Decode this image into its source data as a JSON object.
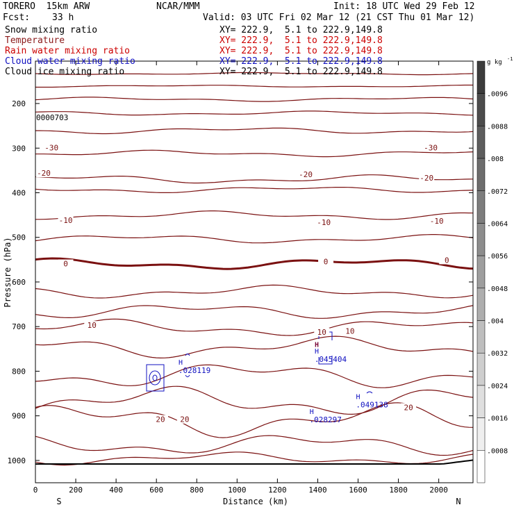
{
  "header": {
    "model": "TORERO  15km ARW",
    "center": "NCAR/MMM",
    "init": "Init: 18 UTC Wed 29 Feb 12",
    "fcst_label": "Fcst:",
    "fcst_value": "33 h",
    "valid": "Valid: 03 UTC Fri 02 Mar 12 (21 CST Thu 01 Mar 12)"
  },
  "fields": [
    {
      "name": "Snow mixing ratio",
      "xy": "XY= 222.9,  5.1 to 222.9,149.8",
      "color": "#000000"
    },
    {
      "name": "Temperature",
      "xy": "XY= 222.9,  5.1 to 222.9,149.8",
      "color": "#8b1a1a"
    },
    {
      "name": "Rain water mixing ratio",
      "xy": "XY= 222.9,  5.1 to 222.9,149.8",
      "color": "#cc0000"
    },
    {
      "name": "Cloud water mixing ratio",
      "xy": "XY= 222.9,  5.1 to 222.9,149.8",
      "color": "#1010c0"
    },
    {
      "name": "Cloud ice mixing ratio",
      "xy": "XY= 222.9,  5.1 to 222.9,149.8",
      "color": "#000000"
    }
  ],
  "chart_data": {
    "type": "contour cross-section",
    "xlabel": "Distance (km)",
    "ylabel": "Pressure (hPa)",
    "x_range": [
      0,
      2170
    ],
    "y_range": [
      1050,
      105
    ],
    "x_ticks": [
      0,
      200,
      400,
      600,
      800,
      1000,
      1200,
      1400,
      1600,
      1800,
      2000
    ],
    "y_ticks": [
      200,
      300,
      400,
      500,
      600,
      700,
      800,
      900,
      1000
    ],
    "endpoints": {
      "left": "S",
      "right": "N"
    },
    "colorbar": {
      "units": "g kg",
      "units_exp": "-1",
      "levels": [
        ".0096",
        ".0088",
        ".008",
        ".0072",
        ".0064",
        ".0056",
        ".0048",
        ".004",
        ".0032",
        ".0024",
        ".0016",
        ".0008"
      ]
    },
    "temperature_labels": [
      {
        "text": "-30",
        "x": 80,
        "p": 302
      },
      {
        "text": "-30",
        "x": 1960,
        "p": 302
      },
      {
        "text": "-20",
        "x": -20,
        "p": 359
      },
      {
        "text": "-20",
        "x": 1340,
        "p": 362
      },
      {
        "text": "-20",
        "x": 1940,
        "p": 370
      },
      {
        "text": "-10",
        "x": 150,
        "p": 465
      },
      {
        "text": "-10",
        "x": 1430,
        "p": 469
      },
      {
        "text": "-10",
        "x": 1990,
        "p": 466
      },
      {
        "text": "0",
        "x": 150,
        "p": 562
      },
      {
        "text": "0",
        "x": 1440,
        "p": 557
      },
      {
        "text": "0",
        "x": 2040,
        "p": 554
      },
      {
        "text": "10",
        "x": 280,
        "p": 700
      },
      {
        "text": "10",
        "x": 1420,
        "p": 715
      },
      {
        "text": "10",
        "x": 1560,
        "p": 713
      },
      {
        "text": "20",
        "x": 620,
        "p": 911
      },
      {
        "text": "20",
        "x": 740,
        "p": 911
      },
      {
        "text": "20",
        "x": 1850,
        "p": 884
      }
    ],
    "extrema": [
      {
        "mark": "H",
        "value": ".028119",
        "x": 720,
        "p": 795,
        "color": "#1010c0"
      },
      {
        "mark": "H",
        "value": ".045404",
        "x": 1395,
        "p": 770,
        "color": "#1010c0"
      },
      {
        "mark": "H",
        "value": ".049138",
        "x": 1600,
        "p": 872,
        "color": "#1010c0"
      },
      {
        "mark": "H",
        "value": ".028297",
        "x": 1370,
        "p": 905,
        "color": "#1010c0"
      },
      {
        "mark": "H",
        "value": "",
        "x": 1395,
        "p": 755,
        "color": "#7a0a3a"
      }
    ],
    "corner_label": "0000703"
  }
}
